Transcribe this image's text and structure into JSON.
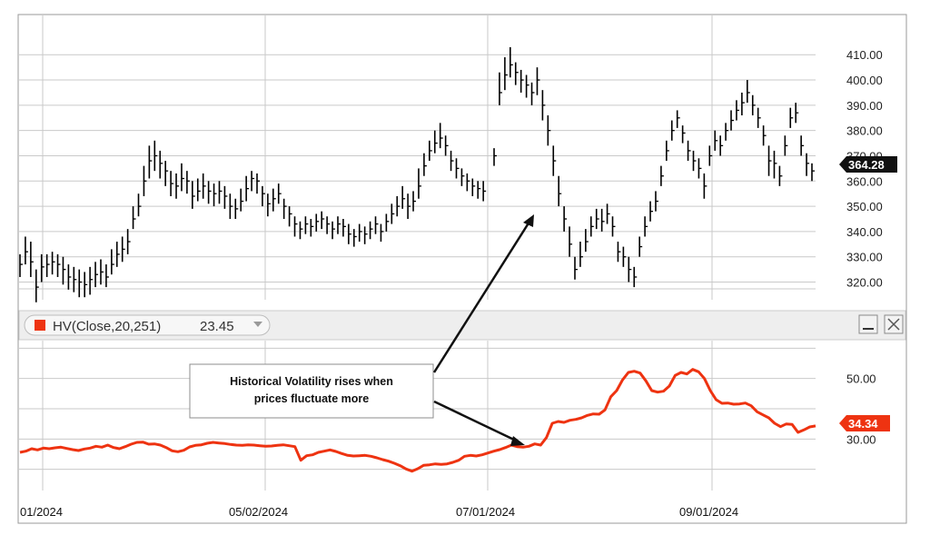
{
  "chart_data": [
    {
      "type": "ohlc",
      "name": "price",
      "y_ticks": [
        "410.00",
        "400.00",
        "390.00",
        "380.00",
        "370.00",
        "360.00",
        "350.00",
        "340.00",
        "330.00",
        "320.00"
      ],
      "ylim": [
        313,
        418
      ],
      "last_price": "364.28",
      "bar_color": "#000000",
      "bars": [
        [
          327,
          322,
          331
        ],
        [
          332,
          327,
          338
        ],
        [
          328,
          322,
          336
        ],
        [
          318,
          312,
          325
        ],
        [
          326,
          320,
          331
        ],
        [
          327,
          322,
          331
        ],
        [
          328,
          323,
          332
        ],
        [
          327,
          322,
          331
        ],
        [
          325,
          319,
          330
        ],
        [
          322,
          317,
          327
        ],
        [
          321,
          316,
          326
        ],
        [
          320,
          314,
          325
        ],
        [
          319,
          314,
          324
        ],
        [
          321,
          315,
          326
        ],
        [
          323,
          318,
          328
        ],
        [
          324,
          319,
          329
        ],
        [
          322,
          318,
          327
        ],
        [
          327,
          323,
          333
        ],
        [
          331,
          326,
          336
        ],
        [
          333,
          328,
          338
        ],
        [
          336,
          331,
          341
        ],
        [
          345,
          341,
          350
        ],
        [
          350,
          346,
          355
        ],
        [
          360,
          354,
          366
        ],
        [
          368,
          361,
          374
        ],
        [
          370,
          364,
          376
        ],
        [
          367,
          361,
          372
        ],
        [
          364,
          358,
          368
        ],
        [
          359,
          354,
          364
        ],
        [
          358,
          353,
          363
        ],
        [
          361,
          356,
          367
        ],
        [
          360,
          355,
          364
        ],
        [
          354,
          349,
          360
        ],
        [
          356,
          352,
          361
        ],
        [
          358,
          353,
          363
        ],
        [
          356,
          351,
          360
        ],
        [
          355,
          350,
          359
        ],
        [
          356,
          351,
          360
        ],
        [
          354,
          349,
          358
        ],
        [
          350,
          345,
          355
        ],
        [
          349,
          345,
          353
        ],
        [
          352,
          348,
          357
        ],
        [
          357,
          352,
          362
        ],
        [
          361,
          356,
          364
        ],
        [
          360,
          355,
          363
        ],
        [
          355,
          350,
          358
        ],
        [
          351,
          346,
          355
        ],
        [
          353,
          348,
          357
        ],
        [
          355,
          351,
          359
        ],
        [
          350,
          345,
          353
        ],
        [
          347,
          342,
          350
        ],
        [
          343,
          338,
          346
        ],
        [
          341,
          337,
          344
        ],
        [
          343,
          339,
          346
        ],
        [
          342,
          338,
          345
        ],
        [
          344,
          340,
          347
        ],
        [
          345,
          341,
          348
        ],
        [
          343,
          339,
          346
        ],
        [
          341,
          337,
          344
        ],
        [
          343,
          339,
          346
        ],
        [
          342,
          338,
          345
        ],
        [
          339,
          335,
          343
        ],
        [
          338,
          334,
          341
        ],
        [
          340,
          336,
          343
        ],
        [
          339,
          335,
          342
        ],
        [
          341,
          337,
          344
        ],
        [
          343,
          339,
          346
        ],
        [
          340,
          336,
          343
        ],
        [
          344,
          340,
          347
        ],
        [
          347,
          343,
          351
        ],
        [
          350,
          346,
          354
        ],
        [
          353,
          349,
          358
        ],
        [
          350,
          345,
          355
        ],
        [
          352,
          348,
          356
        ],
        [
          358,
          353,
          365
        ],
        [
          366,
          362,
          371
        ],
        [
          372,
          368,
          376
        ],
        [
          375,
          371,
          380
        ],
        [
          377,
          373,
          383
        ],
        [
          374,
          370,
          378
        ],
        [
          368,
          364,
          372
        ],
        [
          365,
          361,
          369
        ],
        [
          362,
          358,
          365
        ],
        [
          360,
          356,
          363
        ],
        [
          358,
          354,
          361
        ],
        [
          357,
          353,
          360
        ],
        [
          356,
          352,
          360
        ],
        [
          null,
          null,
          null
        ],
        [
          370,
          366,
          373
        ],
        [
          395,
          390,
          403
        ],
        [
          402,
          396,
          409
        ],
        [
          406,
          401,
          413
        ],
        [
          403,
          398,
          407
        ],
        [
          400,
          395,
          404
        ],
        [
          398,
          393,
          402
        ],
        [
          395,
          390,
          399
        ],
        [
          400,
          394,
          405
        ],
        [
          390,
          384,
          396
        ],
        [
          380,
          374,
          386
        ],
        [
          368,
          362,
          374
        ],
        [
          355,
          350,
          362
        ],
        [
          345,
          340,
          350
        ],
        [
          335,
          330,
          342
        ],
        [
          325,
          321,
          330
        ],
        [
          330,
          326,
          336
        ],
        [
          336,
          332,
          341
        ],
        [
          342,
          338,
          346
        ],
        [
          345,
          341,
          349
        ],
        [
          344,
          340,
          349
        ],
        [
          347,
          343,
          351
        ],
        [
          342,
          338,
          346
        ],
        [
          332,
          328,
          336
        ],
        [
          330,
          326,
          334
        ],
        [
          325,
          320,
          330
        ],
        [
          322,
          318,
          326
        ],
        [
          334,
          330,
          338
        ],
        [
          342,
          338,
          346
        ],
        [
          348,
          344,
          352
        ],
        [
          352,
          348,
          356
        ],
        [
          362,
          358,
          366
        ],
        [
          372,
          368,
          376
        ],
        [
          380,
          376,
          384
        ],
        [
          385,
          381,
          388
        ],
        [
          379,
          375,
          382
        ],
        [
          372,
          368,
          376
        ],
        [
          368,
          364,
          372
        ],
        [
          365,
          361,
          369
        ],
        [
          358,
          353,
          363
        ],
        [
          370,
          366,
          374
        ],
        [
          376,
          372,
          380
        ],
        [
          374,
          370,
          378
        ],
        [
          380,
          376,
          383
        ],
        [
          384,
          380,
          388
        ],
        [
          388,
          384,
          392
        ],
        [
          391,
          386,
          395
        ],
        [
          395,
          391,
          400
        ],
        [
          390,
          386,
          394
        ],
        [
          385,
          381,
          389
        ],
        [
          378,
          374,
          382
        ],
        [
          368,
          362,
          374
        ],
        [
          367,
          361,
          372
        ],
        [
          362,
          358,
          366
        ],
        [
          374,
          370,
          378
        ],
        [
          385,
          381,
          389
        ],
        [
          387,
          383,
          391
        ],
        [
          374,
          370,
          378
        ],
        [
          367,
          362,
          371
        ],
        [
          364,
          360,
          367
        ]
      ]
    },
    {
      "type": "line",
      "name": "HV(Close,20,251)",
      "legend_label": "HV(Close,20,251)",
      "legend_value": "23.45",
      "y_ticks": [
        "50.00",
        "30.00"
      ],
      "ylim": [
        13,
        61
      ],
      "last_value": "34.34",
      "color": "#ee3311",
      "values": [
        25.6,
        26.0,
        26.8,
        26.4,
        27.0,
        26.8,
        27.1,
        27.3,
        26.9,
        26.5,
        26.2,
        26.7,
        27.0,
        27.6,
        27.3,
        28.0,
        27.2,
        26.8,
        27.5,
        28.3,
        28.9,
        29.0,
        28.3,
        28.4,
        28.0,
        27.2,
        26.1,
        25.8,
        26.3,
        27.4,
        27.9,
        28.1,
        28.6,
        28.9,
        28.7,
        28.5,
        28.2,
        28.0,
        27.9,
        28.1,
        28.0,
        27.8,
        27.6,
        27.7,
        27.9,
        28.1,
        27.8,
        27.5,
        23.0,
        24.5,
        24.8,
        25.6,
        26.0,
        26.4,
        25.9,
        25.2,
        24.6,
        24.4,
        24.5,
        24.6,
        24.3,
        23.8,
        23.2,
        22.7,
        22.0,
        21.2,
        20.1,
        19.4,
        20.2,
        21.3,
        21.5,
        21.8,
        21.6,
        21.8,
        22.3,
        23.0,
        24.3,
        24.6,
        24.4,
        24.8,
        25.4,
        26.0,
        26.5,
        27.2,
        28.0,
        27.5,
        27.3,
        27.6,
        28.4,
        28.0,
        30.5,
        35.2,
        35.8,
        35.5,
        36.2,
        36.5,
        37.0,
        37.8,
        38.3,
        38.2,
        39.6,
        44.0,
        46.0,
        49.5,
        52.0,
        52.4,
        51.8,
        49.2,
        46.0,
        45.5,
        45.8,
        47.5,
        51.0,
        52.0,
        51.5,
        53.0,
        52.2,
        50.0,
        46.0,
        43.0,
        41.8,
        41.9,
        41.5,
        41.6,
        41.9,
        41.0,
        39.0,
        38.0,
        37.0,
        35.2,
        34.1,
        35.0,
        34.8,
        32.2,
        33.0,
        34.0,
        34.34
      ]
    }
  ],
  "x_ticks": [
    "01/2024",
    "05/02/2024",
    "07/01/2024",
    "09/01/2024"
  ],
  "annotation": {
    "line1": "Historical Volatility rises when",
    "line2": "prices fluctuate more"
  },
  "colors": {
    "grid": "#c9c9c9",
    "badge": "#111111",
    "badge_hv": "#ee3311"
  },
  "icons": [
    "minimize-icon",
    "close-icon",
    "dropdown-arrow-icon"
  ]
}
